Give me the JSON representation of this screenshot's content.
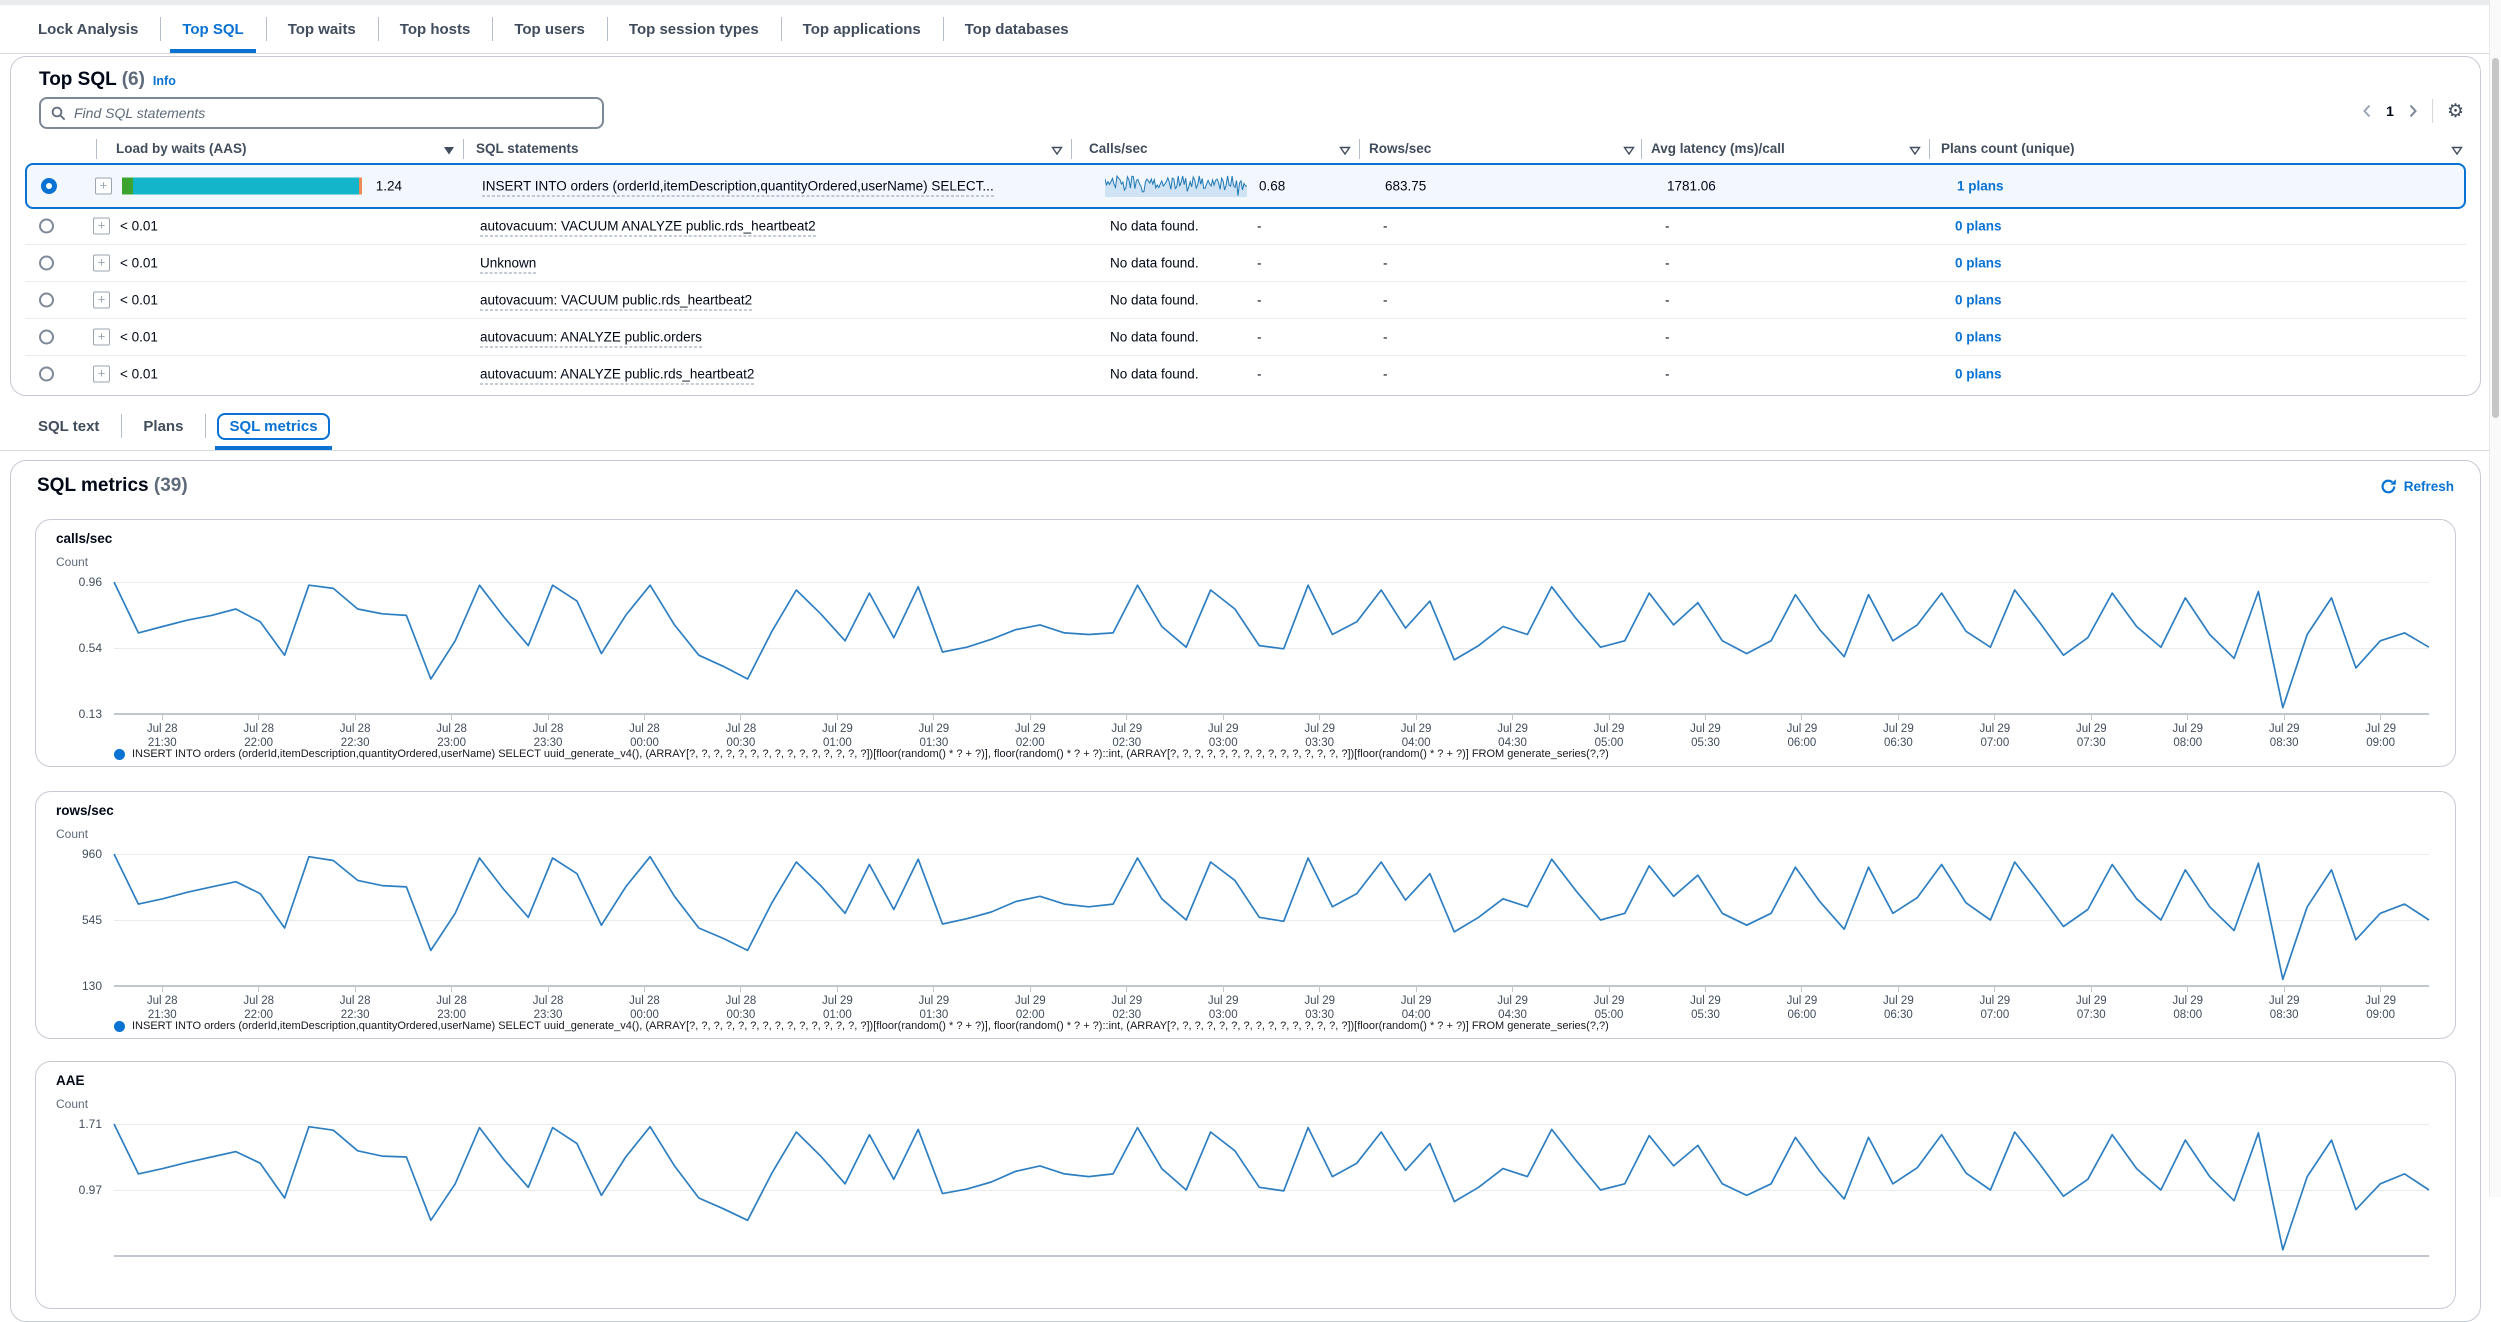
{
  "colors": {
    "accent": "#0972d3",
    "chart_line": "#2e7fc2",
    "legend_dot": "#0972d3",
    "bar_green": "#3da32f",
    "bar_teal": "#12b5c9",
    "bar_orange": "#ec8b54"
  },
  "tabs_top": {
    "items": [
      "Lock Analysis",
      "Top SQL",
      "Top waits",
      "Top hosts",
      "Top users",
      "Top session types",
      "Top applications",
      "Top databases"
    ],
    "active": "Top SQL"
  },
  "top_sql": {
    "title": "Top SQL",
    "count": "(6)",
    "info": "Info",
    "search_placeholder": "Find SQL statements",
    "pagination": {
      "page": "1"
    },
    "table": {
      "columns": [
        "Load by waits (AAS)",
        "SQL statements",
        "Calls/sec",
        "Rows/sec",
        "Avg latency (ms)/call",
        "Plans count (unique)"
      ],
      "rows": [
        {
          "load": "1.24",
          "sql": "INSERT INTO orders (orderId,itemDescription,quantityOrdered,userName) SELECT...",
          "calls": "0.68",
          "rows_per_sec": "683.75",
          "avg_latency": "1781.06",
          "plans": "1 plans"
        },
        {
          "load": "< 0.01",
          "sql": "autovacuum: VACUUM ANALYZE public.rds_heartbeat2",
          "calls_note": "No data found.",
          "calls": "-",
          "rows_per_sec": "-",
          "avg_latency": "-",
          "plans": "0 plans"
        },
        {
          "load": "< 0.01",
          "sql": "Unknown",
          "calls_note": "No data found.",
          "calls": "-",
          "rows_per_sec": "-",
          "avg_latency": "-",
          "plans": "0 plans"
        },
        {
          "load": "< 0.01",
          "sql": "autovacuum: VACUUM public.rds_heartbeat2",
          "calls_note": "No data found.",
          "calls": "-",
          "rows_per_sec": "-",
          "avg_latency": "-",
          "plans": "0 plans"
        },
        {
          "load": "< 0.01",
          "sql": "autovacuum: ANALYZE public.orders",
          "calls_note": "No data found.",
          "calls": "-",
          "rows_per_sec": "-",
          "avg_latency": "-",
          "plans": "0 plans"
        },
        {
          "load": "< 0.01",
          "sql": "autovacuum: ANALYZE public.rds_heartbeat2",
          "calls_note": "No data found.",
          "calls": "-",
          "rows_per_sec": "-",
          "avg_latency": "-",
          "plans": "0 plans"
        }
      ]
    }
  },
  "detail_tabs": {
    "items": [
      "SQL text",
      "Plans",
      "SQL metrics"
    ],
    "active": "SQL metrics"
  },
  "sql_metrics": {
    "title": "SQL metrics",
    "count": "(39)",
    "refresh": "Refresh"
  },
  "chart_data": [
    {
      "type": "line",
      "title": "calls/sec",
      "ylabel": "Count",
      "ylim": [
        0.13,
        0.96
      ],
      "ticks": [
        "0.96",
        "0.54",
        "0.13"
      ],
      "grid": "horizontal",
      "legend_position": "bottom",
      "x_labels": [
        "Jul 28 21:30",
        "Jul 28 22:00",
        "Jul 28 22:30",
        "Jul 28 23:00",
        "Jul 28 23:30",
        "Jul 28 00:00",
        "Jul 28 00:30",
        "Jul 29 01:00",
        "Jul 29 01:30",
        "Jul 29 02:00",
        "Jul 29 02:30",
        "Jul 29 03:00",
        "Jul 29 03:30",
        "Jul 29 04:00",
        "Jul 29 04:30",
        "Jul 29 05:00",
        "Jul 29 05:30",
        "Jul 29 06:00",
        "Jul 29 06:30",
        "Jul 29 07:00",
        "Jul 29 07:30",
        "Jul 29 08:00",
        "Jul 29 08:30",
        "Jul 29 09:00"
      ],
      "values": [
        0.96,
        0.64,
        0.68,
        0.72,
        0.75,
        0.79,
        0.71,
        0.5,
        0.94,
        0.92,
        0.79,
        0.76,
        0.75,
        0.35,
        0.59,
        0.94,
        0.74,
        0.56,
        0.94,
        0.84,
        0.51,
        0.75,
        0.94,
        0.69,
        0.5,
        0.43,
        0.35,
        0.65,
        0.91,
        0.76,
        0.59,
        0.89,
        0.61,
        0.93,
        0.52,
        0.55,
        0.6,
        0.66,
        0.69,
        0.64,
        0.63,
        0.64,
        0.94,
        0.68,
        0.55,
        0.91,
        0.79,
        0.56,
        0.54,
        0.94,
        0.63,
        0.71,
        0.91,
        0.67,
        0.84,
        0.47,
        0.56,
        0.68,
        0.63,
        0.93,
        0.73,
        0.55,
        0.59,
        0.89,
        0.69,
        0.83,
        0.59,
        0.51,
        0.59,
        0.88,
        0.66,
        0.49,
        0.88,
        0.59,
        0.69,
        0.89,
        0.65,
        0.55,
        0.91,
        0.71,
        0.5,
        0.61,
        0.89,
        0.68,
        0.55,
        0.86,
        0.63,
        0.48,
        0.9,
        0.17,
        0.63,
        0.86,
        0.42,
        0.59,
        0.64,
        0.55
      ],
      "legend": "INSERT INTO orders (orderId,itemDescription,quantityOrdered,userName) SELECT uuid_generate_v4(), (ARRAY[?, ?, ?, ?, ?, ?, ?, ?, ?, ?, ?, ?, ?, ?, ?])[floor(random() * ? + ?)], floor(random() * ? + ?)::int, (ARRAY[?, ?, ?, ?, ?, ?, ?, ?, ?, ?, ?, ?, ?, ?, ?])[floor(random() * ? + ?)] FROM generate_series(?,?)"
    },
    {
      "type": "line",
      "title": "rows/sec",
      "ylabel": "Count",
      "ylim": [
        130,
        960
      ],
      "ticks": [
        "960",
        "545",
        "130"
      ],
      "grid": "horizontal",
      "legend_position": "bottom",
      "x_labels": [
        "Jul 28 21:30",
        "Jul 28 22:00",
        "Jul 28 22:30",
        "Jul 28 23:00",
        "Jul 28 23:30",
        "Jul 28 00:00",
        "Jul 28 00:30",
        "Jul 29 01:00",
        "Jul 29 01:30",
        "Jul 29 02:00",
        "Jul 29 02:30",
        "Jul 29 03:00",
        "Jul 29 03:30",
        "Jul 29 04:00",
        "Jul 29 04:30",
        "Jul 29 05:00",
        "Jul 29 05:30",
        "Jul 29 06:00",
        "Jul 29 06:30",
        "Jul 29 07:00",
        "Jul 29 07:30",
        "Jul 29 08:00",
        "Jul 29 08:30",
        "Jul 29 09:00"
      ],
      "values": [
        960,
        645,
        678,
        719,
        753,
        786,
        711,
        495,
        943,
        919,
        794,
        761,
        753,
        354,
        587,
        935,
        736,
        562,
        935,
        836,
        512,
        753,
        943,
        694,
        495,
        429,
        354,
        653,
        910,
        761,
        587,
        894,
        611,
        927,
        520,
        553,
        595,
        661,
        694,
        645,
        628,
        645,
        935,
        678,
        545,
        910,
        794,
        562,
        537,
        935,
        628,
        711,
        910,
        670,
        836,
        470,
        562,
        678,
        628,
        927,
        728,
        545,
        587,
        885,
        694,
        827,
        587,
        512,
        587,
        877,
        661,
        487,
        877,
        587,
        686,
        894,
        653,
        545,
        910,
        711,
        504,
        611,
        894,
        678,
        545,
        860,
        628,
        479,
        902,
        172,
        628,
        860,
        421,
        587,
        645,
        545
      ],
      "legend": "INSERT INTO orders (orderId,itemDescription,quantityOrdered,userName) SELECT uuid_generate_v4(), (ARRAY[?, ?, ?, ?, ?, ?, ?, ?, ?, ?, ?, ?, ?, ?, ?])[floor(random() * ? + ?)], floor(random() * ? + ?)::int, (ARRAY[?, ?, ?, ?, ?, ?, ?, ?, ?, ?, ?, ?, ?, ?, ?])[floor(random() * ? + ?)] FROM generate_series(?,?)"
    },
    {
      "type": "line",
      "title": "AAE",
      "ylabel": "Count",
      "ylim": [
        0.23,
        1.71
      ],
      "ticks": [
        "1.71",
        "0.97"
      ],
      "grid": "horizontal",
      "values": [
        1.71,
        1.15,
        1.21,
        1.28,
        1.34,
        1.4,
        1.27,
        0.88,
        1.68,
        1.64,
        1.41,
        1.35,
        1.34,
        0.63,
        1.04,
        1.67,
        1.31,
        1.0,
        1.67,
        1.49,
        0.91,
        1.34,
        1.68,
        1.24,
        0.88,
        0.76,
        0.63,
        1.16,
        1.62,
        1.35,
        1.04,
        1.59,
        1.09,
        1.65,
        0.93,
        0.98,
        1.06,
        1.18,
        1.24,
        1.15,
        1.12,
        1.15,
        1.67,
        1.21,
        0.97,
        1.62,
        1.41,
        1.0,
        0.96,
        1.67,
        1.12,
        1.27,
        1.62,
        1.19,
        1.49,
        0.84,
        1.0,
        1.21,
        1.12,
        1.65,
        1.3,
        0.97,
        1.04,
        1.58,
        1.24,
        1.47,
        1.04,
        0.91,
        1.04,
        1.56,
        1.18,
        0.87,
        1.56,
        1.04,
        1.22,
        1.59,
        1.16,
        0.97,
        1.62,
        1.27,
        0.9,
        1.09,
        1.59,
        1.21,
        0.97,
        1.53,
        1.12,
        0.85,
        1.61,
        0.3,
        1.12,
        1.53,
        0.75,
        1.04,
        1.15,
        0.97
      ]
    }
  ]
}
